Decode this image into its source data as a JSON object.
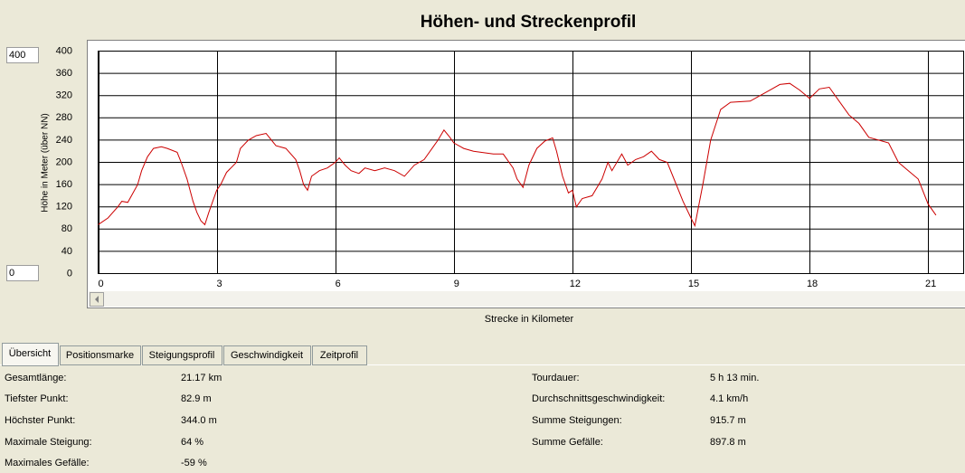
{
  "chart_data": {
    "type": "line",
    "title": "Höhen- und Streckenprofil",
    "x_label": "Strecke in Kilometer",
    "y_label": "Höhe in Meter (über NN)",
    "xlim": [
      0,
      21.9
    ],
    "xticks": [
      0,
      3,
      6,
      9,
      12,
      15,
      18,
      21
    ],
    "ylim": [
      0,
      400
    ],
    "yticks": [
      0,
      40,
      80,
      120,
      160,
      200,
      240,
      280,
      320,
      360,
      400
    ],
    "grid": true,
    "x": [
      0,
      0.25,
      0.5,
      0.6,
      0.75,
      1.0,
      1.1,
      1.25,
      1.4,
      1.6,
      1.75,
      2.0,
      2.1,
      2.25,
      2.4,
      2.5,
      2.6,
      2.7,
      2.8,
      3.0,
      3.1,
      3.25,
      3.5,
      3.6,
      3.8,
      4.0,
      4.25,
      4.5,
      4.75,
      5.0,
      5.1,
      5.2,
      5.3,
      5.4,
      5.6,
      5.8,
      6.0,
      6.1,
      6.25,
      6.4,
      6.6,
      6.75,
      7.0,
      7.25,
      7.5,
      7.75,
      8.0,
      8.25,
      8.5,
      8.6,
      8.75,
      8.9,
      9.0,
      9.25,
      9.5,
      10.0,
      10.25,
      10.5,
      10.6,
      10.75,
      10.9,
      11.1,
      11.3,
      11.5,
      11.6,
      11.75,
      11.9,
      12.0,
      12.1,
      12.25,
      12.5,
      12.75,
      12.9,
      13.0,
      13.25,
      13.4,
      13.6,
      13.8,
      14.0,
      14.2,
      14.4,
      14.6,
      14.8,
      15.0,
      15.1,
      15.3,
      15.5,
      15.75,
      16.0,
      16.5,
      17.0,
      17.25,
      17.5,
      17.75,
      18.0,
      18.25,
      18.5,
      18.75,
      19.0,
      19.25,
      19.5,
      20.0,
      20.25,
      20.5,
      20.75,
      21.0,
      21.2
    ],
    "series": [
      {
        "name": "Höhe",
        "color": "#cc0000",
        "values": [
          88,
          100,
          120,
          130,
          128,
          160,
          185,
          210,
          225,
          228,
          225,
          218,
          200,
          170,
          130,
          110,
          95,
          88,
          110,
          150,
          160,
          182,
          200,
          225,
          240,
          248,
          252,
          230,
          225,
          205,
          185,
          160,
          150,
          175,
          185,
          190,
          200,
          208,
          195,
          185,
          180,
          190,
          185,
          190,
          185,
          175,
          195,
          205,
          230,
          240,
          258,
          245,
          235,
          225,
          220,
          215,
          215,
          190,
          170,
          155,
          195,
          225,
          238,
          244,
          220,
          175,
          145,
          150,
          120,
          135,
          140,
          170,
          200,
          185,
          215,
          195,
          205,
          210,
          220,
          205,
          200,
          165,
          130,
          100,
          86,
          160,
          240,
          295,
          308,
          310,
          330,
          340,
          342,
          330,
          315,
          332,
          335,
          310,
          285,
          270,
          245,
          235,
          200,
          185,
          170,
          125,
          105
        ]
      }
    ]
  },
  "inputs": {
    "max": "400",
    "min": "0"
  },
  "tabs": [
    "Übersicht",
    "Positionsmarke",
    "Steigungsprofil",
    "Geschwindigkeit",
    "Zeitprofil"
  ],
  "stats": {
    "left": [
      [
        "Gesamtlänge:",
        "21.17 km"
      ],
      [
        "Tiefster Punkt:",
        "82.9 m"
      ],
      [
        "Höchster Punkt:",
        "344.0 m"
      ],
      [
        "Maximale Steigung:",
        "64 %"
      ],
      [
        "Maximales Gefälle:",
        "-59 %"
      ]
    ],
    "right": [
      [
        "Tourdauer:",
        "5 h 13 min."
      ],
      [
        "Durchschnittsgeschwindigkeit:",
        "4.1 km/h"
      ],
      [
        "Summe Steigungen:",
        "915.7 m"
      ],
      [
        "Summe Gefälle:",
        "897.8 m"
      ]
    ]
  }
}
